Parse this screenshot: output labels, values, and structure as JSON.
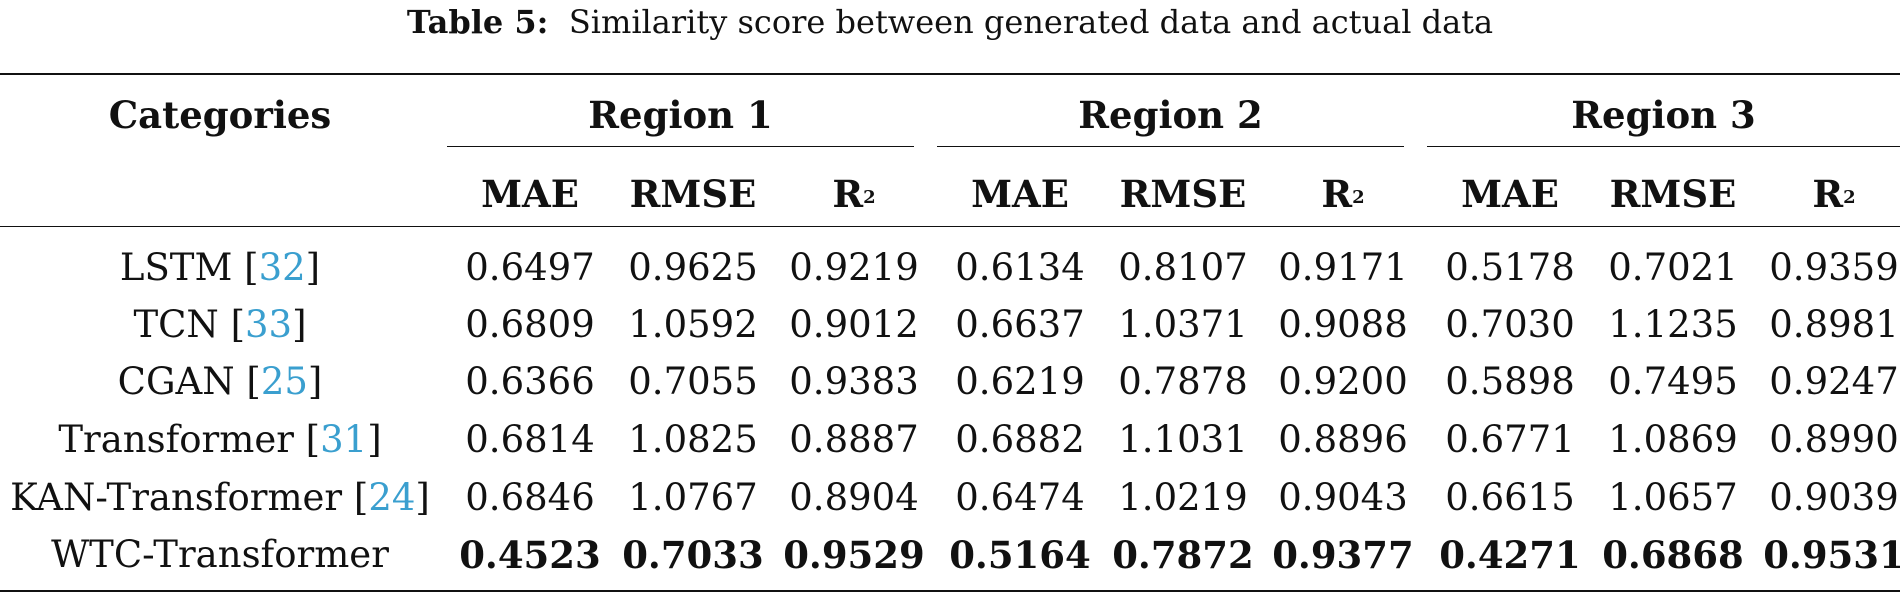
{
  "caption": {
    "label": "Table 5:",
    "text": "Similarity score between generated data and actual data"
  },
  "table": {
    "category_header": "Categories",
    "groups": [
      "Region 1",
      "Region 2",
      "Region 3"
    ],
    "metrics": [
      "MAE",
      "RMSE",
      "R"
    ],
    "metric_superscript": "2",
    "rows": [
      {
        "name": "LSTM",
        "cite": "32",
        "values": [
          "0.6497",
          "0.9625",
          "0.9219",
          "0.6134",
          "0.8107",
          "0.9171",
          "0.5178",
          "0.7021",
          "0.9359"
        ]
      },
      {
        "name": "TCN",
        "cite": "33",
        "values": [
          "0.6809",
          "1.0592",
          "0.9012",
          "0.6637",
          "1.0371",
          "0.9088",
          "0.7030",
          "1.1235",
          "0.8981"
        ]
      },
      {
        "name": "CGAN",
        "cite": "25",
        "values": [
          "0.6366",
          "0.7055",
          "0.9383",
          "0.6219",
          "0.7878",
          "0.9200",
          "0.5898",
          "0.7495",
          "0.9247"
        ]
      },
      {
        "name": "Transformer",
        "cite": "31",
        "values": [
          "0.6814",
          "1.0825",
          "0.8887",
          "0.6882",
          "1.1031",
          "0.8896",
          "0.6771",
          "1.0869",
          "0.8990"
        ]
      },
      {
        "name": "KAN-Transformer",
        "cite": "24",
        "values": [
          "0.6846",
          "1.0767",
          "0.8904",
          "0.6474",
          "1.0219",
          "0.9043",
          "0.6615",
          "1.0657",
          "0.9039"
        ]
      },
      {
        "name": "WTC-Transformer",
        "cite": "",
        "bold": true,
        "values": [
          "0.4523",
          "0.7033",
          "0.9529",
          "0.5164",
          "0.7872",
          "0.9377",
          "0.4271",
          "0.6868",
          "0.9531"
        ]
      }
    ]
  }
}
